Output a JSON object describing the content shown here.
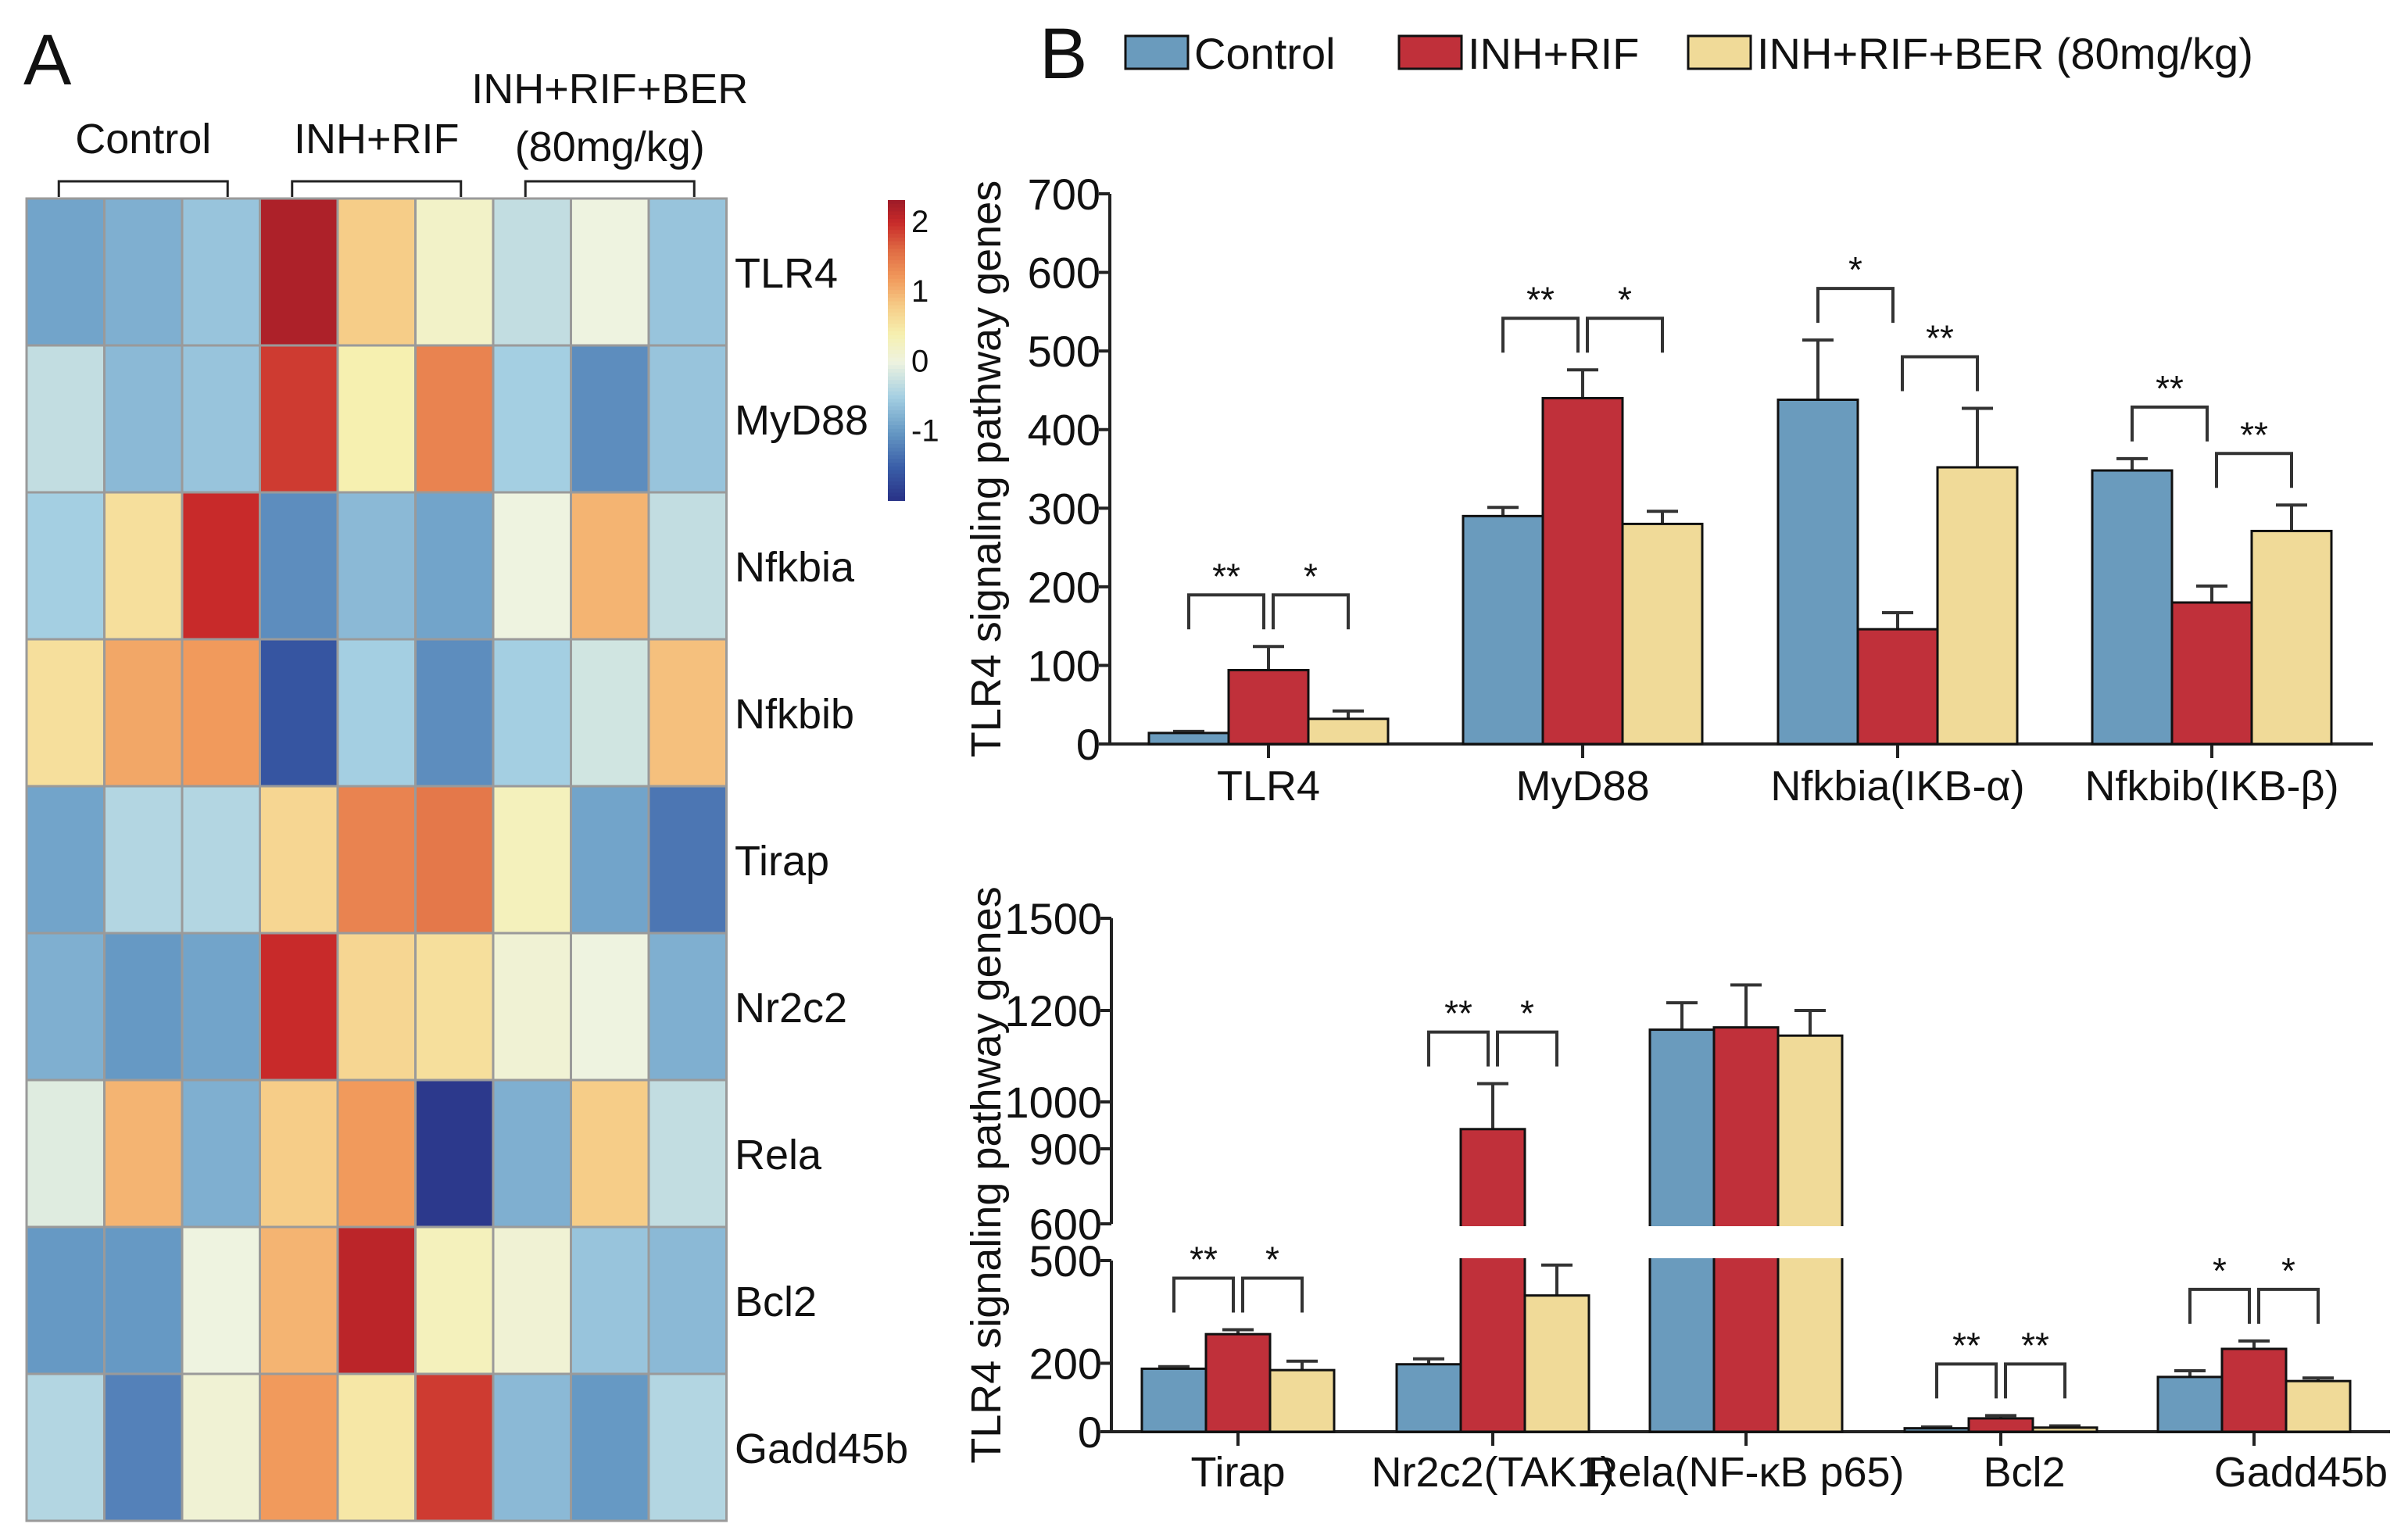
{
  "panels": {
    "a_label": "A",
    "b_label": "B"
  },
  "colors": {
    "control": "#6a9bbd",
    "inh_rif": "#c0303a",
    "ber": "#f0da98"
  },
  "chart_data": [
    {
      "type": "heatmap",
      "title": "",
      "groups": [
        {
          "label": "Control",
          "columns": 3
        },
        {
          "label": "INH+RIF",
          "columns": 3
        },
        {
          "label": "INH+RIF+BER",
          "label2": "(80mg/kg)",
          "columns": 3
        }
      ],
      "rows": [
        "TLR4",
        "MyD88",
        "Nfkbia",
        "Nfkbib",
        "Tirap",
        "Nr2c2",
        "Rela",
        "Bcl2",
        "Gadd45b"
      ],
      "values": [
        [
          -0.9,
          -0.8,
          -0.6,
          2.2,
          0.8,
          0.2,
          -0.3,
          0.0,
          -0.6
        ],
        [
          -0.3,
          -0.7,
          -0.6,
          1.9,
          0.4,
          1.4,
          -0.5,
          -1.1,
          -0.6
        ],
        [
          -0.5,
          0.6,
          2.0,
          -1.1,
          -0.7,
          -0.9,
          0.0,
          1.0,
          -0.3
        ],
        [
          0.6,
          1.1,
          1.2,
          -1.6,
          -0.5,
          -1.1,
          -0.5,
          -0.2,
          0.9
        ],
        [
          -0.9,
          -0.4,
          -0.4,
          0.7,
          1.4,
          1.5,
          0.3,
          -0.9,
          -1.3
        ],
        [
          -0.8,
          -1.0,
          -0.9,
          2.0,
          0.7,
          0.6,
          0.1,
          0.0,
          -0.8
        ],
        [
          -0.1,
          1.0,
          -0.8,
          0.8,
          1.2,
          -1.9,
          -0.8,
          0.8,
          -0.3
        ],
        [
          -1.0,
          -1.0,
          0.0,
          1.0,
          2.1,
          0.3,
          0.1,
          -0.6,
          -0.7
        ],
        [
          -0.4,
          -1.2,
          0.1,
          1.2,
          0.5,
          1.9,
          -0.7,
          -1.0,
          -0.4
        ]
      ],
      "colorbar": {
        "ticks": [
          "2",
          "1",
          "0",
          "-1"
        ],
        "tick_values": [
          2,
          1,
          0,
          -1
        ],
        "range": [
          -2,
          2.3
        ]
      }
    },
    {
      "type": "bar",
      "title": "",
      "ylabel": "TLR4 signaling pathway genes",
      "ylim": [
        0,
        700
      ],
      "yticks": [
        0,
        100,
        200,
        300,
        400,
        500,
        600,
        700
      ],
      "legend": {
        "placement": "top",
        "entries": [
          "Control",
          "INH+RIF",
          "INH+RIF+BER (80mg/kg)"
        ]
      },
      "categories": [
        "TLR4",
        "MyD88",
        "Nfkbia(IKB-α)",
        "Nfkbib(IKB-β)"
      ],
      "series": [
        {
          "name": "Control",
          "values": [
            14,
            290,
            438,
            348
          ],
          "errors": [
            16,
            301,
            514,
            363
          ]
        },
        {
          "name": "INH+RIF",
          "values": [
            94,
            440,
            146,
            180
          ],
          "errors": [
            124,
            476,
            167,
            201
          ]
        },
        {
          "name": "INH+RIF+BER (80mg/kg)",
          "values": [
            32,
            280,
            352,
            271
          ],
          "errors": [
            42,
            296,
            427,
            304
          ]
        }
      ],
      "significance": [
        {
          "category": 0,
          "pair": [
            0,
            1
          ],
          "label": "**"
        },
        {
          "category": 0,
          "pair": [
            1,
            2
          ],
          "label": "*"
        },
        {
          "category": 1,
          "pair": [
            0,
            1
          ],
          "label": "**"
        },
        {
          "category": 1,
          "pair": [
            1,
            2
          ],
          "label": "*"
        },
        {
          "category": 2,
          "pair": [
            0,
            1
          ],
          "label": "*"
        },
        {
          "category": 2,
          "pair": [
            1,
            2
          ],
          "label": "**"
        },
        {
          "category": 3,
          "pair": [
            0,
            1
          ],
          "label": "**"
        },
        {
          "category": 3,
          "pair": [
            1,
            2
          ],
          "label": "**"
        }
      ]
    },
    {
      "type": "bar",
      "title": "",
      "ylabel": "TLR4 signaling pathway genes",
      "ylim": [
        0,
        1500
      ],
      "axis_break": [
        500,
        600
      ],
      "yticks": [
        0,
        200,
        500,
        600,
        900,
        1000,
        1200,
        1500
      ],
      "categories": [
        "Tirap",
        "Nr2c2(TAK1)",
        "Rela(NF-κB p65)",
        "Bcl2",
        "Gadd45b"
      ],
      "series": [
        {
          "name": "Control",
          "values": [
            184,
            197,
            1158,
            10,
            160
          ],
          "errors": [
            190,
            213,
            1225,
            14,
            178
          ]
        },
        {
          "name": "INH+RIF",
          "values": [
            285,
            942,
            1163,
            39,
            242
          ],
          "errors": [
            298,
            1040,
            1283,
            47,
            265
          ]
        },
        {
          "name": "INH+RIF+BER (80mg/kg)",
          "values": [
            180,
            398,
            1145,
            12,
            148
          ],
          "errors": [
            206,
            487,
            1200,
            17,
            157
          ]
        }
      ],
      "significance": [
        {
          "category": 0,
          "pair": [
            0,
            1
          ],
          "label": "**"
        },
        {
          "category": 0,
          "pair": [
            1,
            2
          ],
          "label": "*"
        },
        {
          "category": 1,
          "pair": [
            0,
            1
          ],
          "label": "**"
        },
        {
          "category": 1,
          "pair": [
            1,
            2
          ],
          "label": "*"
        },
        {
          "category": 3,
          "pair": [
            0,
            1
          ],
          "label": "**"
        },
        {
          "category": 3,
          "pair": [
            1,
            2
          ],
          "label": "**"
        },
        {
          "category": 4,
          "pair": [
            0,
            1
          ],
          "label": "*"
        },
        {
          "category": 4,
          "pair": [
            1,
            2
          ],
          "label": "*"
        }
      ]
    }
  ]
}
